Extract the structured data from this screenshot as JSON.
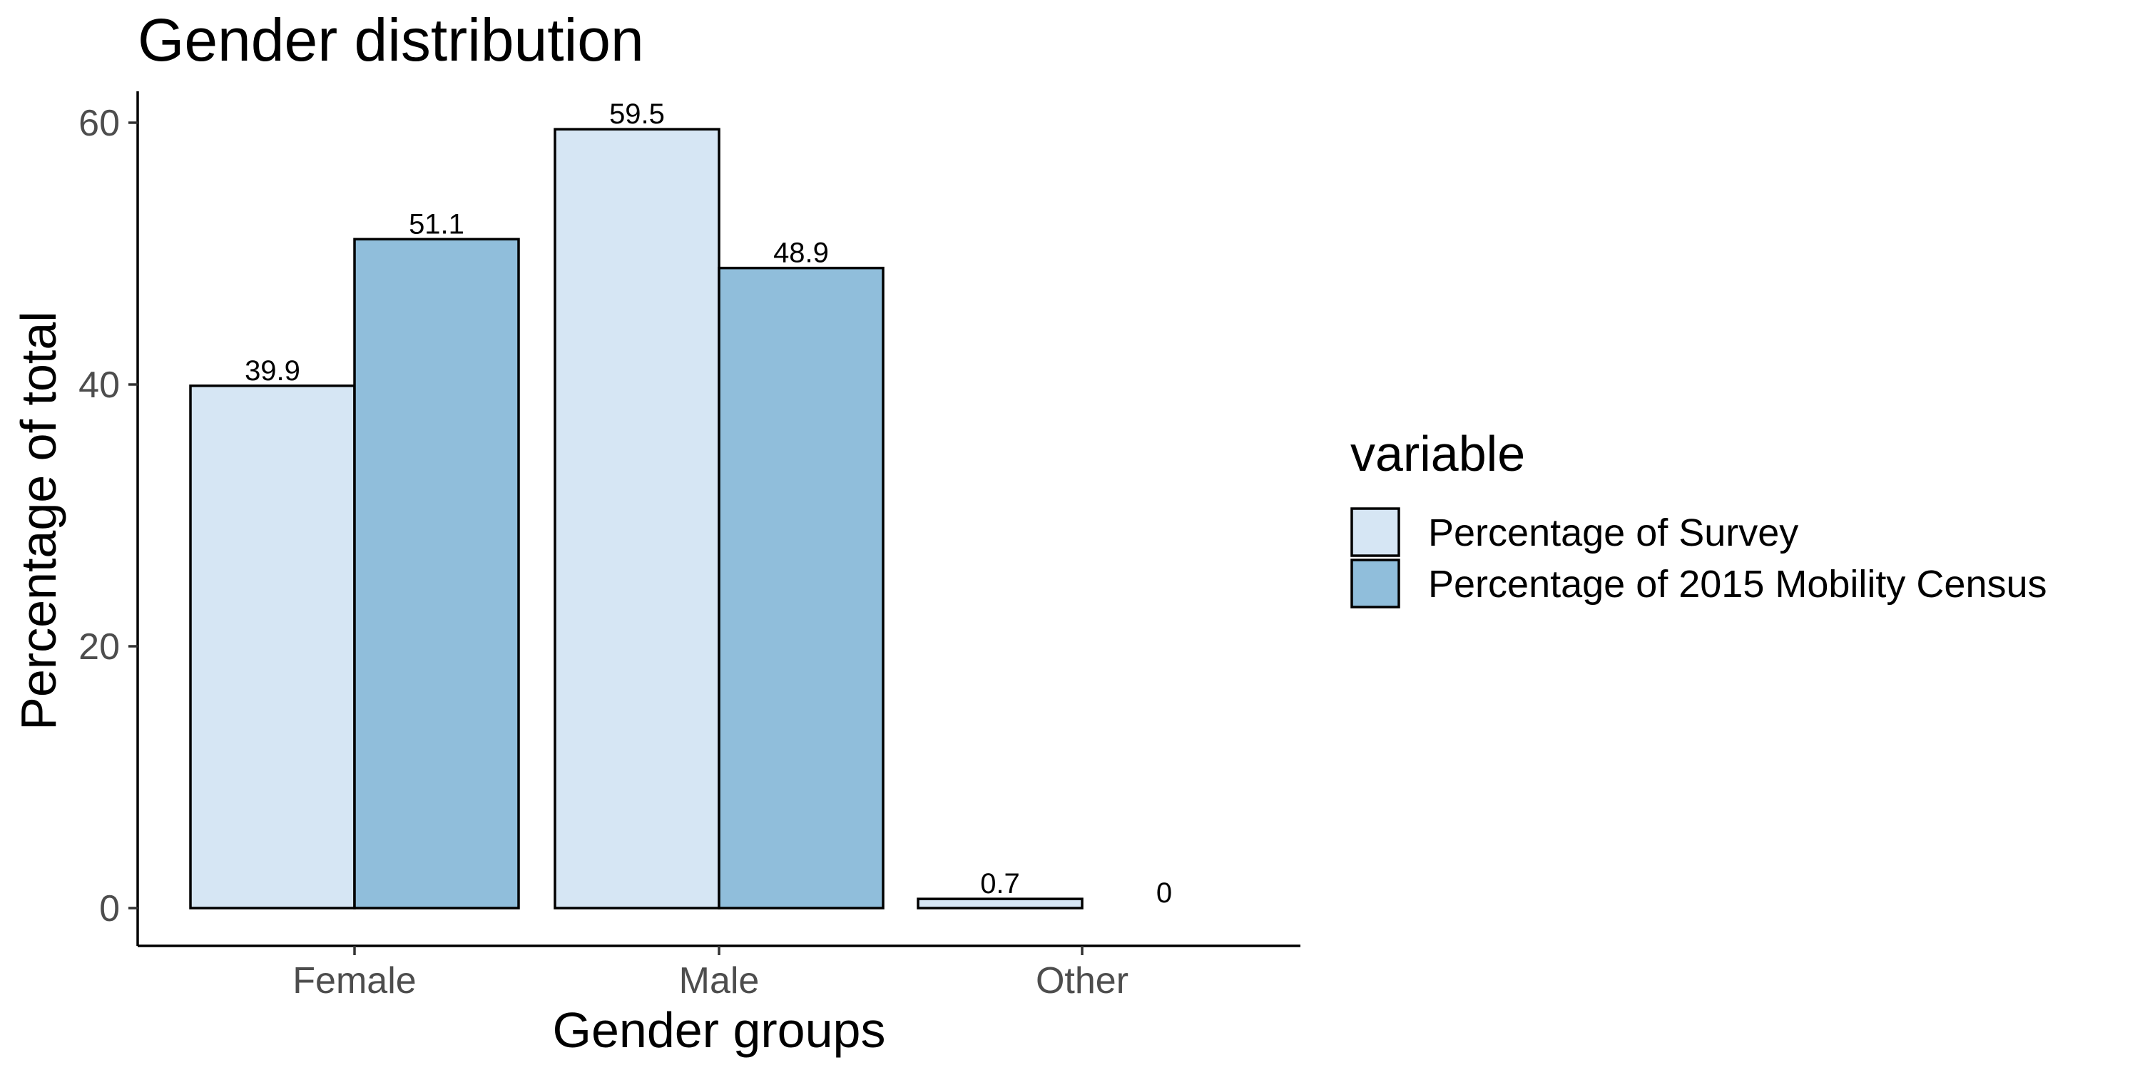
{
  "chart_data": {
    "type": "bar",
    "title": "Gender distribution",
    "xlabel": "Gender groups",
    "ylabel": "Percentage of total",
    "categories": [
      "Female",
      "Male",
      "Other"
    ],
    "ylim": [
      0,
      62
    ],
    "yticks": [
      0,
      20,
      40,
      60
    ],
    "grid": false,
    "legend": {
      "title": "variable",
      "position": "right"
    },
    "series": [
      {
        "name": "Percentage of Survey",
        "color": "#d6e6f4",
        "values": [
          39.9,
          59.5,
          0.7
        ],
        "labels": [
          "39.9",
          "59.5",
          "0.7"
        ]
      },
      {
        "name": "Percentage of 2015 Mobility Census",
        "color": "#90bedb",
        "values": [
          51.1,
          48.9,
          0
        ],
        "labels": [
          "51.1",
          "48.9",
          "0"
        ]
      }
    ]
  }
}
